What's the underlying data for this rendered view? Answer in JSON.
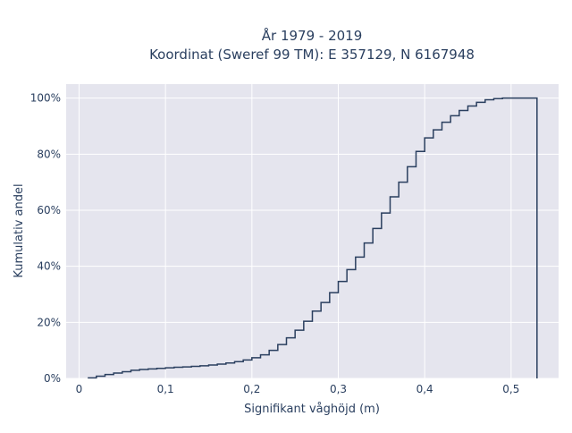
{
  "chart_data": {
    "type": "line",
    "title": "År 1979 - 2019",
    "subtitle": "Koordinat (Sweref 99 TM): E 357129, N 6167948",
    "xlabel": "Signifikant våghöjd (m)",
    "ylabel": "Kumulativ andel",
    "xlim": [
      -0.015,
      0.555
    ],
    "ylim": [
      0,
      1.05
    ],
    "x_ticks": [
      0,
      0.1,
      0.2,
      0.3,
      0.4,
      0.5
    ],
    "x_tick_labels": [
      "0",
      "0,1",
      "0,2",
      "0,3",
      "0,4",
      "0,5"
    ],
    "y_ticks": [
      0,
      0.2,
      0.4,
      0.6,
      0.8,
      1.0
    ],
    "y_tick_labels": [
      "0%",
      "20%",
      "40%",
      "60%",
      "80%",
      "100%"
    ],
    "grid": true,
    "step": true,
    "line_color": "#2a3f5f",
    "plot_bg": "#e5e5ee",
    "series": [
      {
        "x": [
          0.01,
          0.02,
          0.03,
          0.04,
          0.05,
          0.06,
          0.07,
          0.08,
          0.09,
          0.1,
          0.11,
          0.12,
          0.13,
          0.14,
          0.15,
          0.16,
          0.17,
          0.18,
          0.19,
          0.2,
          0.21,
          0.22,
          0.23,
          0.24,
          0.25,
          0.26,
          0.27,
          0.28,
          0.29,
          0.3,
          0.31,
          0.32,
          0.33,
          0.34,
          0.35,
          0.36,
          0.37,
          0.38,
          0.39,
          0.4,
          0.41,
          0.42,
          0.43,
          0.44,
          0.45,
          0.46,
          0.47,
          0.48,
          0.49,
          0.5,
          0.51,
          0.52,
          0.53
        ],
        "y": [
          0.002,
          0.008,
          0.014,
          0.019,
          0.024,
          0.029,
          0.032,
          0.034,
          0.036,
          0.038,
          0.04,
          0.041,
          0.043,
          0.045,
          0.048,
          0.051,
          0.055,
          0.06,
          0.066,
          0.074,
          0.084,
          0.1,
          0.121,
          0.145,
          0.172,
          0.204,
          0.24,
          0.271,
          0.306,
          0.346,
          0.388,
          0.433,
          0.483,
          0.535,
          0.59,
          0.648,
          0.7,
          0.755,
          0.81,
          0.858,
          0.887,
          0.914,
          0.937,
          0.956,
          0.972,
          0.985,
          0.994,
          0.998,
          1.0,
          1.0,
          1.0,
          1.0,
          1.0
        ]
      }
    ]
  }
}
